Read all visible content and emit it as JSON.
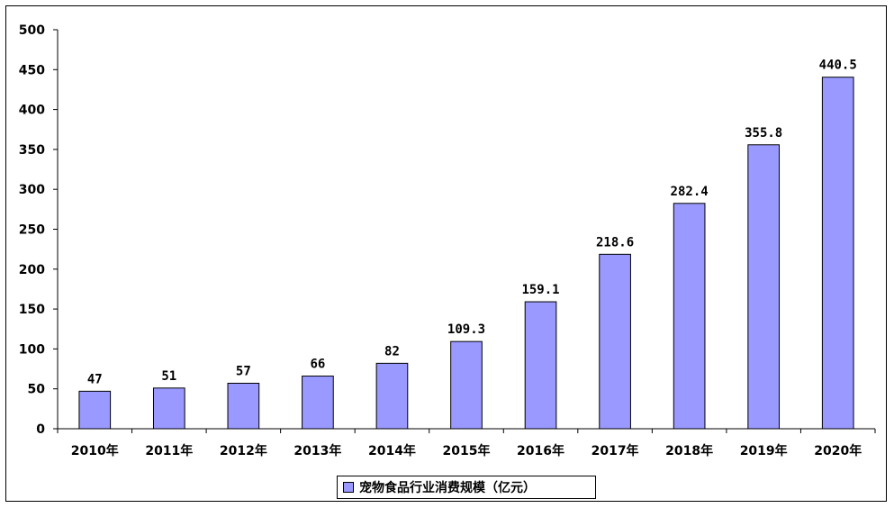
{
  "colors": {
    "bar": "#9999FF",
    "bar_stroke": "#000000",
    "axis": "#000000"
  },
  "chart_data": {
    "type": "bar",
    "categories": [
      "2010年",
      "2011年",
      "2012年",
      "2013年",
      "2014年",
      "2015年",
      "2016年",
      "2017年",
      "2018年",
      "2019年",
      "2020年"
    ],
    "series": [
      {
        "name": "宠物食品行业消费规模（亿元）",
        "values": [
          47,
          51,
          57,
          66,
          82,
          109.3,
          159.1,
          218.6,
          282.4,
          355.8,
          440.5
        ]
      }
    ],
    "data_labels": [
      "47",
      "51",
      "57",
      "66",
      "82",
      "109.3",
      "159.1",
      "218.6",
      "282.4",
      "355.8",
      "440.5"
    ],
    "ylim": [
      0,
      500
    ],
    "yticks": [
      0,
      50,
      100,
      150,
      200,
      250,
      300,
      350,
      400,
      450,
      500
    ],
    "grid": false,
    "legend_position": "bottom"
  }
}
